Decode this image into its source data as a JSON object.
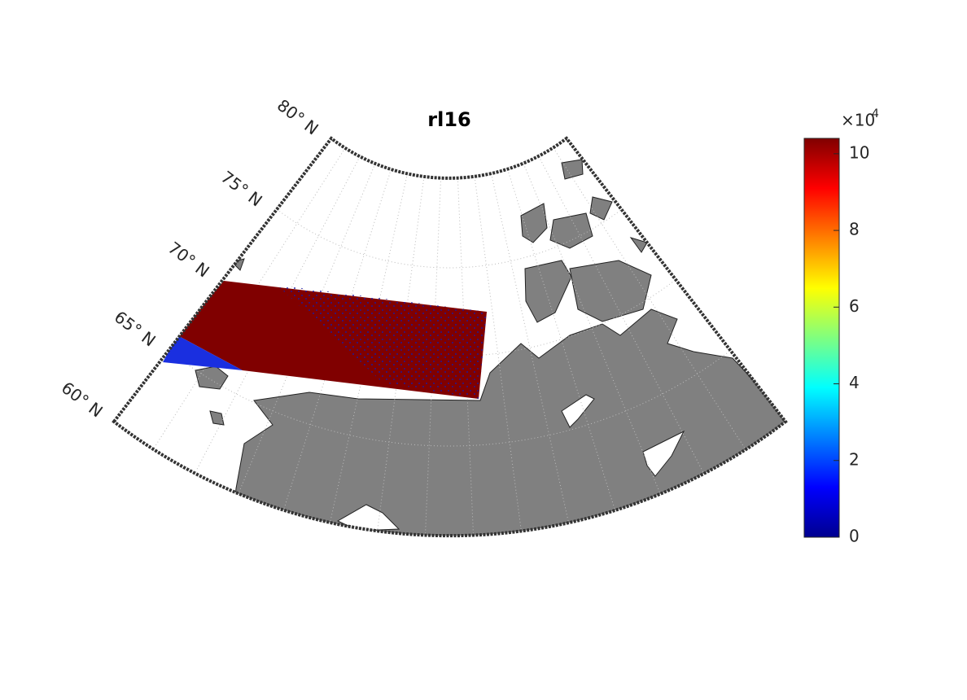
{
  "map": {
    "title": "rl16",
    "lat_labels": [
      "80° N",
      "75° N",
      "70° N",
      "65° N",
      "60° N"
    ],
    "colorbar": {
      "lim": [
        0,
        10.4
      ],
      "ticks": [
        0,
        2,
        4,
        6,
        8,
        10
      ],
      "multiplier": "×10",
      "exponent": "4"
    }
  }
}
